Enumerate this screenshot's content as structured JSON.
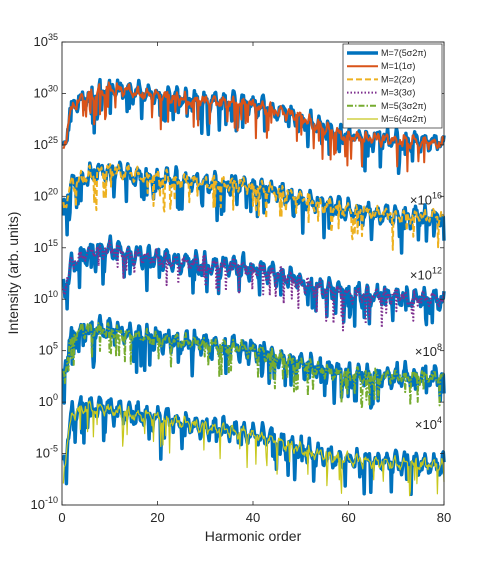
{
  "chart_data": {
    "type": "line",
    "title": "",
    "xlabel": "Harmonic order",
    "ylabel": "Intensity (arb. units)",
    "xlim": [
      0,
      80
    ],
    "ylim_log10": [
      -10,
      35
    ],
    "y_scale": "log",
    "x_ticks": [
      {
        "value": 0,
        "label": "0"
      },
      {
        "value": 20,
        "label": "20"
      },
      {
        "value": 40,
        "label": "40"
      },
      {
        "value": 60,
        "label": "60"
      },
      {
        "value": 80,
        "label": "80"
      }
    ],
    "y_ticks": [
      {
        "exp": 35,
        "base": "10",
        "sup": "35"
      },
      {
        "exp": 30,
        "base": "10",
        "sup": "30"
      },
      {
        "exp": 25,
        "base": "10",
        "sup": "25"
      },
      {
        "exp": 20,
        "base": "10",
        "sup": "20"
      },
      {
        "exp": 15,
        "base": "10",
        "sup": "15"
      },
      {
        "exp": 10,
        "base": "10",
        "sup": "10"
      },
      {
        "exp": 5,
        "base": "10",
        "sup": "5"
      },
      {
        "exp": 0,
        "base": "10",
        "sup": "0"
      },
      {
        "exp": -5,
        "base": "10",
        "sup": "-5"
      },
      {
        "exp": -10,
        "base": "10",
        "sup": "-10"
      }
    ],
    "grid": false,
    "legend_position": "top-right",
    "legend": [
      {
        "label": "M=7(5σ2π)",
        "color": "#0072BD",
        "dash": "solid",
        "width": 3.5
      },
      {
        "label": "M=1(1σ)",
        "color": "#D95319",
        "dash": "solid",
        "width": 2
      },
      {
        "label": "M=2(2σ)",
        "color": "#EDB120",
        "dash": "dashed",
        "width": 2
      },
      {
        "label": "M=3(3σ)",
        "color": "#7E2F8E",
        "dash": "dotted",
        "width": 2
      },
      {
        "label": "M=5(3σ2π)",
        "color": "#77AC30",
        "dash": "dashdot",
        "width": 2
      },
      {
        "label": "M=6(4σ2π)",
        "color": "#C8C81E",
        "dash": "solid",
        "width": 1.2
      }
    ],
    "scale_annotations": [
      {
        "base": "×10",
        "sup": "16",
        "x": 80,
        "exp": 19.2
      },
      {
        "base": "×10",
        "sup": "12",
        "x": 80,
        "exp": 11.9
      },
      {
        "base": "×10",
        "sup": "8",
        "x": 80,
        "exp": 4.5
      },
      {
        "base": "×10",
        "sup": "4",
        "x": 80,
        "exp": -2.6
      }
    ],
    "groups": [
      {
        "scale_exp": 20,
        "envelope": [
          [
            0.5,
            25
          ],
          [
            2,
            28.6
          ],
          [
            5,
            29.6
          ],
          [
            10,
            30.5
          ],
          [
            15,
            30.1
          ],
          [
            20,
            29.7
          ],
          [
            30,
            29.2
          ],
          [
            38,
            29.1
          ],
          [
            44,
            28.4
          ],
          [
            48,
            28.0
          ],
          [
            52,
            27.2
          ],
          [
            56,
            26.4
          ],
          [
            60,
            25.8
          ],
          [
            70,
            25.4
          ],
          [
            80,
            25.1
          ]
        ],
        "series": [
          {
            "name": "M=7(5σ2π)",
            "amp": 1.1,
            "seed": 1
          },
          {
            "name": "M=1(1σ)",
            "amp": 0.7,
            "seed": 2
          }
        ]
      },
      {
        "scale_exp": 16,
        "envelope": [
          [
            0.5,
            19
          ],
          [
            2,
            21.2
          ],
          [
            5,
            22.0
          ],
          [
            10,
            22.6
          ],
          [
            15,
            22.1
          ],
          [
            20,
            21.8
          ],
          [
            30,
            21.3
          ],
          [
            38,
            21.1
          ],
          [
            44,
            20.5
          ],
          [
            48,
            20.1
          ],
          [
            52,
            19.5
          ],
          [
            56,
            19.0
          ],
          [
            60,
            18.6
          ],
          [
            70,
            18.2
          ],
          [
            80,
            17.9
          ]
        ],
        "series": [
          {
            "name": "M=7(5σ2π)",
            "amp": 1.1,
            "seed": 3
          },
          {
            "name": "M=2(2σ)",
            "amp": 0.8,
            "seed": 4
          }
        ]
      },
      {
        "scale_exp": 12,
        "envelope": [
          [
            0.5,
            11
          ],
          [
            2,
            13.4
          ],
          [
            5,
            14.4
          ],
          [
            10,
            14.9
          ],
          [
            15,
            14.2
          ],
          [
            20,
            13.9
          ],
          [
            30,
            13.3
          ],
          [
            38,
            13.1
          ],
          [
            44,
            12.5
          ],
          [
            48,
            12.1
          ],
          [
            52,
            11.3
          ],
          [
            56,
            10.9
          ],
          [
            60,
            10.5
          ],
          [
            70,
            10.2
          ],
          [
            80,
            9.9
          ]
        ],
        "series": [
          {
            "name": "M=7(5σ2π)",
            "amp": 1.2,
            "seed": 5
          },
          {
            "name": "M=3(3σ)",
            "amp": 0.9,
            "seed": 6
          }
        ]
      },
      {
        "scale_exp": 8,
        "envelope": [
          [
            0.5,
            3
          ],
          [
            2,
            6.4
          ],
          [
            5,
            7.2
          ],
          [
            10,
            7.0
          ],
          [
            15,
            6.5
          ],
          [
            20,
            6.1
          ],
          [
            30,
            5.6
          ],
          [
            38,
            5.2
          ],
          [
            44,
            4.6
          ],
          [
            48,
            3.9
          ],
          [
            52,
            3.3
          ],
          [
            56,
            2.9
          ],
          [
            60,
            2.6
          ],
          [
            70,
            2.5
          ],
          [
            80,
            2.4
          ]
        ],
        "series": [
          {
            "name": "M=7(5σ2π)",
            "amp": 1.3,
            "seed": 7
          },
          {
            "name": "M=5(3σ2π)",
            "amp": 0.8,
            "seed": 8
          }
        ]
      },
      {
        "scale_exp": 4,
        "envelope": [
          [
            0.5,
            -6
          ],
          [
            2,
            -1.2
          ],
          [
            5,
            -0.4
          ],
          [
            10,
            -0.8
          ],
          [
            15,
            -1.2
          ],
          [
            20,
            -1.6
          ],
          [
            30,
            -2.4
          ],
          [
            38,
            -3.0
          ],
          [
            44,
            -3.6
          ],
          [
            48,
            -4.3
          ],
          [
            52,
            -4.9
          ],
          [
            56,
            -5.3
          ],
          [
            60,
            -5.6
          ],
          [
            70,
            -6.0
          ],
          [
            80,
            -6.1
          ]
        ],
        "series": [
          {
            "name": "M=7(5σ2π)",
            "amp": 1.3,
            "seed": 9
          },
          {
            "name": "M=6(4σ2π)",
            "amp": 0.7,
            "seed": 10
          }
        ]
      }
    ]
  }
}
